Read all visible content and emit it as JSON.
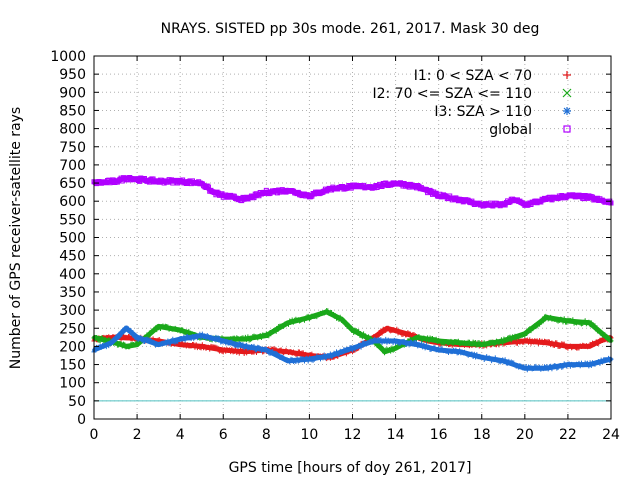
{
  "chart_data": {
    "type": "scatter",
    "title": "NRAYS. SISTED pp 30s mode. 261, 2017. Mask 30 deg",
    "xlabel": "GPS time [hours of doy 261, 2017]",
    "ylabel": "Number of GPS receiver-satellite rays",
    "xlim": [
      0,
      24
    ],
    "ylim": [
      0,
      1000
    ],
    "xticks": [
      0,
      2,
      4,
      6,
      8,
      10,
      12,
      14,
      16,
      18,
      20,
      22,
      24
    ],
    "yticks": [
      0,
      50,
      100,
      150,
      200,
      250,
      300,
      350,
      400,
      450,
      500,
      550,
      600,
      650,
      700,
      750,
      800,
      850,
      900,
      950,
      1000
    ],
    "grid": true,
    "legend_position": "top-right",
    "threshold": {
      "y": 50,
      "color": "#4fc0c0"
    },
    "series": [
      {
        "name": "I1: 0 < SZA < 70",
        "color": "#e41a1c",
        "marker": "+",
        "x": [
          0,
          1,
          2,
          3,
          4,
          5,
          6,
          7,
          8,
          9,
          10,
          11,
          12,
          13,
          13.6,
          14.5,
          15.5,
          16,
          17,
          18,
          19,
          20,
          21,
          22,
          23,
          23.5,
          24
        ],
        "y": [
          220,
          225,
          222,
          215,
          205,
          200,
          190,
          185,
          190,
          185,
          175,
          170,
          190,
          225,
          250,
          235,
          215,
          210,
          205,
          205,
          210,
          215,
          210,
          200,
          200,
          215,
          225
        ]
      },
      {
        "name": "I2: 70 <= SZA <= 110",
        "color": "#1aa81a",
        "marker": "x",
        "x": [
          0,
          1,
          1.5,
          2,
          2.5,
          3,
          4,
          5,
          6,
          7,
          8,
          9,
          10,
          10.8,
          11.5,
          12,
          13,
          13.5,
          14,
          15,
          16,
          17,
          18,
          19,
          20,
          21,
          22,
          23,
          24
        ],
        "y": [
          225,
          210,
          200,
          205,
          230,
          255,
          245,
          225,
          220,
          220,
          230,
          265,
          280,
          295,
          275,
          245,
          215,
          185,
          195,
          225,
          215,
          210,
          205,
          215,
          235,
          280,
          270,
          265,
          215
        ]
      },
      {
        "name": "I3: SZA > 110",
        "color": "#1f6fd6",
        "marker": "*",
        "x": [
          0,
          0.8,
          1.5,
          2,
          3,
          4,
          5,
          6,
          7,
          8,
          9,
          10,
          11,
          12,
          13,
          14,
          15,
          16,
          17,
          18,
          19,
          20,
          21,
          22,
          23,
          24
        ],
        "y": [
          190,
          210,
          250,
          225,
          205,
          220,
          230,
          215,
          200,
          190,
          160,
          165,
          175,
          195,
          215,
          215,
          205,
          190,
          185,
          170,
          160,
          140,
          140,
          150,
          150,
          165
        ]
      },
      {
        "name": "global",
        "color": "#b000ff",
        "marker": "square",
        "x": [
          0,
          1,
          1.6,
          2,
          3,
          4,
          5,
          5.5,
          6,
          7,
          8,
          9,
          10,
          10.5,
          11,
          12,
          13,
          14,
          15,
          16,
          17,
          18,
          19,
          19.5,
          20,
          21,
          22,
          23,
          24
        ],
        "y": [
          650,
          655,
          665,
          660,
          655,
          655,
          650,
          625,
          615,
          605,
          625,
          630,
          615,
          625,
          635,
          640,
          640,
          650,
          640,
          615,
          605,
          590,
          590,
          605,
          590,
          605,
          615,
          610,
          595
        ]
      }
    ]
  }
}
